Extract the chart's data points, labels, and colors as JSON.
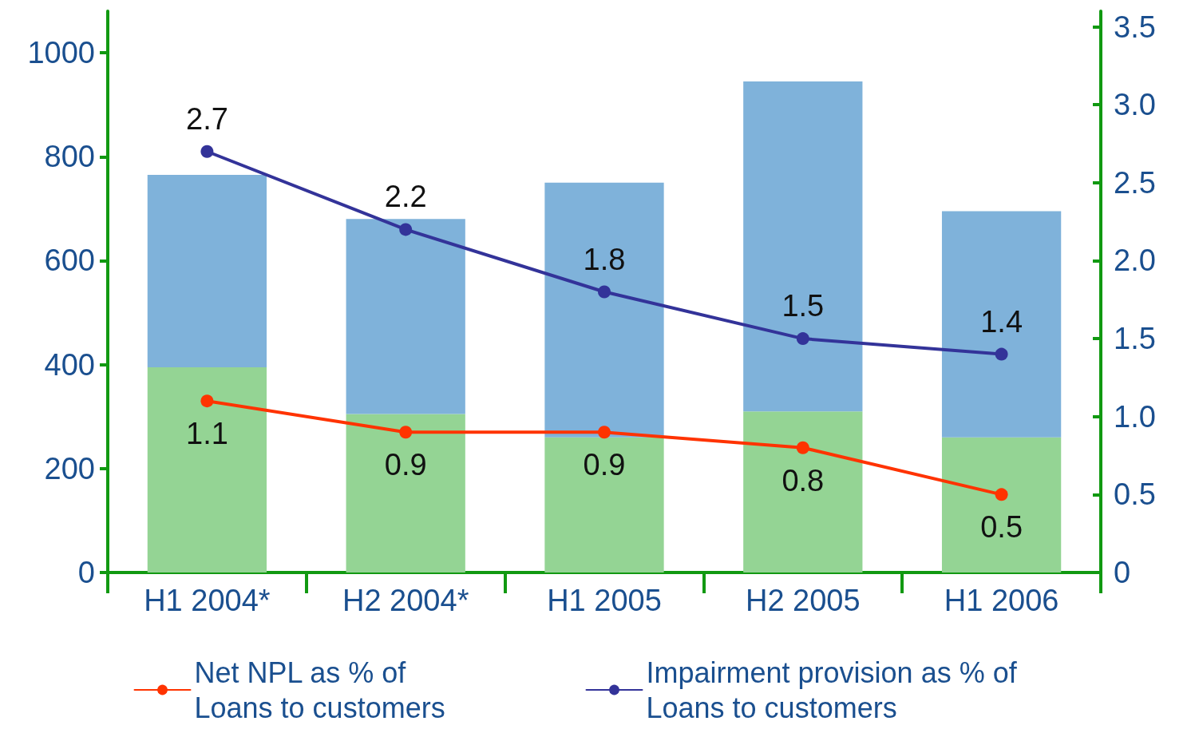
{
  "chart_data": {
    "type": "bar",
    "stacked": true,
    "categories": [
      "H1 2004*",
      "H2 2004*",
      "H1 2005",
      "H2 2005",
      "H1 2006"
    ],
    "series": [
      {
        "color": "#94d494",
        "values": [
          395,
          305,
          260,
          310,
          260
        ]
      },
      {
        "color": "#7fb2da",
        "values": [
          370,
          375,
          490,
          635,
          435
        ]
      },
      {
        "type": "line",
        "axis": "y2",
        "name": "Net NPL as % of Loans to customers",
        "color": "#ff3300",
        "values": [
          1.1,
          0.9,
          0.9,
          0.8,
          0.5
        ],
        "value_labels": [
          "1.1",
          "0.9",
          "0.9",
          "0.8",
          "0.5"
        ]
      },
      {
        "type": "line",
        "axis": "y2",
        "name": "Impairment provision as % of Loans to customers",
        "color": "#333399",
        "values": [
          2.7,
          2.2,
          1.8,
          1.5,
          1.4
        ],
        "value_labels": [
          "2.7",
          "2.2",
          "1.8",
          "1.5",
          "1.4"
        ]
      }
    ],
    "ylim": [
      0,
      1080
    ],
    "yticks": [
      0,
      200,
      400,
      600,
      800,
      1000
    ],
    "y2lim": [
      0,
      3.6
    ],
    "y2ticks": [
      0,
      0.5,
      {
        "value": 1,
        "label": "1.0"
      },
      1.5,
      {
        "value": 2,
        "label": "2.0"
      },
      2.5,
      {
        "value": 3,
        "label": "3.0"
      },
      3.5
    ],
    "marker": "circle",
    "grid": false,
    "legend": "bottom"
  }
}
